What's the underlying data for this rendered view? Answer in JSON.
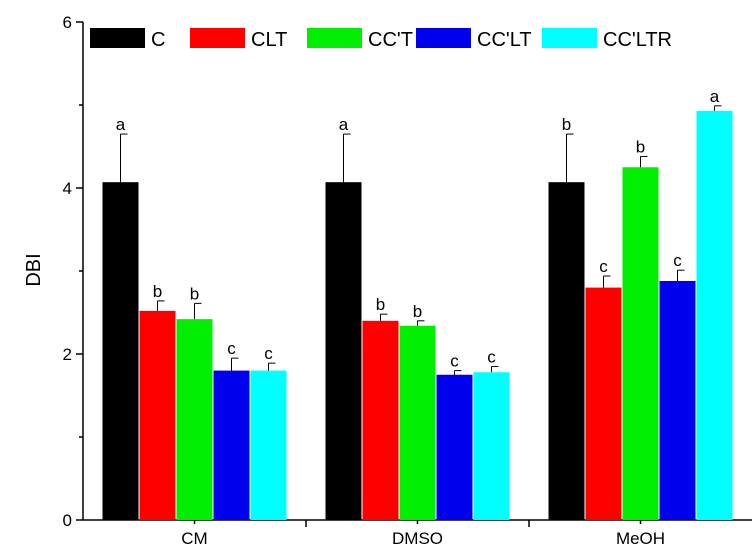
{
  "chart_data": {
    "type": "bar",
    "ylabel": "DBI",
    "xlabel": "",
    "ylim": [
      0,
      6
    ],
    "yticks": [
      0,
      2,
      4,
      6
    ],
    "categories": [
      "CM",
      "DMSO",
      "MeOH"
    ],
    "legend_position": "top",
    "grid": false,
    "series": [
      {
        "name": "C",
        "color": "#000000",
        "values": [
          4.07,
          4.07,
          4.07
        ],
        "errors": [
          0.58,
          0.58,
          0.58
        ],
        "labels": [
          "a",
          "a",
          "b"
        ]
      },
      {
        "name": "CLT",
        "color": "#ff0000",
        "values": [
          2.52,
          2.4,
          2.8
        ],
        "errors": [
          0.12,
          0.08,
          0.14
        ],
        "labels": [
          "b",
          "b",
          "c"
        ]
      },
      {
        "name": "CC'T",
        "color": "#00ee00",
        "values": [
          2.42,
          2.34,
          4.25
        ],
        "errors": [
          0.19,
          0.06,
          0.13
        ],
        "labels": [
          "b",
          "b",
          "b"
        ]
      },
      {
        "name": "CC'LT",
        "color": "#0000ee",
        "values": [
          1.8,
          1.75,
          2.88
        ],
        "errors": [
          0.15,
          0.05,
          0.13
        ],
        "labels": [
          "c",
          "c",
          "c"
        ]
      },
      {
        "name": "CC'LTR",
        "color": "#00ffff",
        "values": [
          1.8,
          1.78,
          4.93
        ],
        "errors": [
          0.09,
          0.07,
          0.06
        ],
        "labels": [
          "c",
          "c",
          "a"
        ]
      }
    ]
  }
}
